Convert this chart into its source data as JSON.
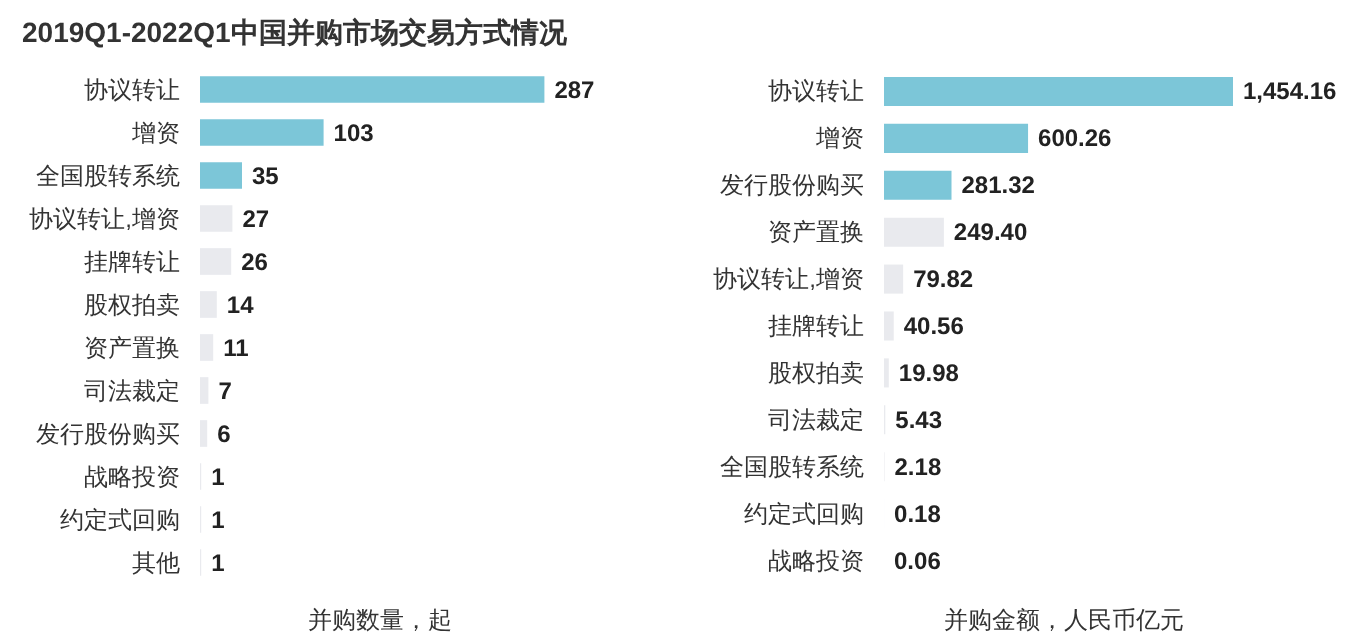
{
  "chart_data": [
    {
      "type": "bar",
      "orientation": "horizontal",
      "title": "2019Q1-2022Q1中国并购市场交易方式情况",
      "xlabel": "并购数量，起",
      "tick_labels": "y",
      "data_labels": true,
      "categories": [
        "协议转让",
        "增资",
        "全国股转系统",
        "协议转让,增资",
        "挂牌转让",
        "股权拍卖",
        "资产置换",
        "司法裁定",
        "发行股份购买",
        "战略投资",
        "约定式回购",
        "其他"
      ],
      "values": [
        287,
        103,
        35,
        27,
        26,
        14,
        11,
        7,
        6,
        1,
        1,
        1
      ],
      "colors": [
        "#7cc6d8",
        "#7cc6d8",
        "#7cc6d8",
        "#e9eaee",
        "#e9eaee",
        "#e9eaee",
        "#e9eaee",
        "#e9eaee",
        "#e9eaee",
        "#e9eaee",
        "#e9eaee",
        "#e9eaee"
      ]
    },
    {
      "type": "bar",
      "orientation": "horizontal",
      "xlabel": "并购金额，人民币亿元",
      "tick_labels": "y",
      "categories": [
        "协议转让",
        "增资",
        "发行股份购买",
        "资产置换",
        "协议转让,增资",
        "挂牌转让",
        "股权拍卖",
        "司法裁定",
        "全国股转系统",
        "约定式回购",
        "战略投资"
      ],
      "values": [
        1454.16,
        600.26,
        281.32,
        249.4,
        79.82,
        40.56,
        19.98,
        5.43,
        2.18,
        0.18,
        0.06
      ],
      "value_labels": [
        "1,454.16",
        "600.26",
        "281.32",
        "249.40",
        "79.82",
        "40.56",
        "19.98",
        "5.43",
        "2.18",
        "0.18",
        "0.06"
      ],
      "colors": [
        "#7cc6d8",
        "#7cc6d8",
        "#7cc6d8",
        "#e9eaee",
        "#e9eaee",
        "#e9eaee",
        "#e9eaee",
        "#e9eaee",
        "#e9eaee",
        "#e9eaee",
        "#e9eaee"
      ]
    }
  ]
}
